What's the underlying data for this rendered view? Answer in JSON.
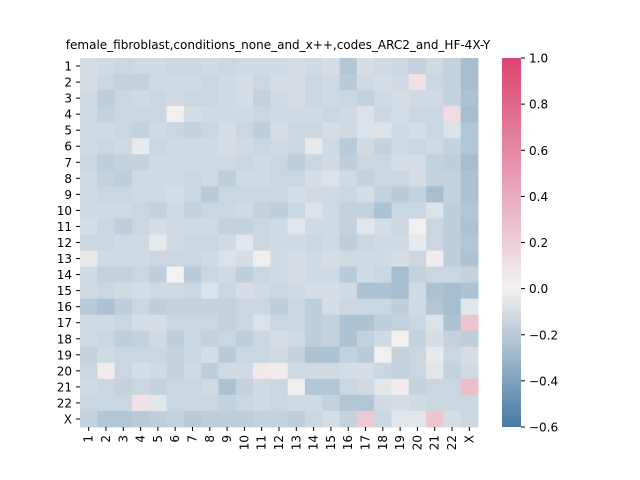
{
  "chart_data": {
    "type": "heatmap",
    "title": "female_fibroblast,conditions_none_and_x++,codes_ARC2_and_HF-4X-Y",
    "xlabel": "",
    "ylabel": "",
    "row_labels": [
      "1",
      "2",
      "3",
      "4",
      "5",
      "6",
      "7",
      "8",
      "9",
      "10",
      "11",
      "12",
      "13",
      "14",
      "15",
      "16",
      "17",
      "18",
      "19",
      "20",
      "21",
      "22",
      "X"
    ],
    "col_labels": [
      "1",
      "2",
      "3",
      "4",
      "5",
      "6",
      "7",
      "8",
      "9",
      "10",
      "11",
      "12",
      "13",
      "14",
      "15",
      "16",
      "17",
      "18",
      "19",
      "20",
      "21",
      "22",
      "X"
    ],
    "vmin": -0.6,
    "vmax": 1.0,
    "colorbar_ticks": [
      "1.0",
      "0.8",
      "0.6",
      "0.4",
      "0.2",
      "0.0",
      "−0.2",
      "−0.4",
      "−0.6"
    ],
    "colorbar_tick_values": [
      1.0,
      0.8,
      0.6,
      0.4,
      0.2,
      0.0,
      -0.2,
      -0.4,
      -0.6
    ],
    "colormap": {
      "low": "#4679a5",
      "mid": "#f2f2f2",
      "high": "#dc4471"
    },
    "values": [
      [
        -0.1,
        -0.12,
        -0.14,
        -0.12,
        -0.12,
        -0.14,
        -0.14,
        -0.12,
        -0.14,
        -0.12,
        -0.12,
        -0.12,
        -0.1,
        -0.12,
        -0.1,
        -0.22,
        -0.1,
        -0.12,
        -0.14,
        -0.16,
        -0.12,
        -0.16,
        -0.26
      ],
      [
        -0.1,
        -0.14,
        -0.16,
        -0.16,
        -0.12,
        -0.12,
        -0.12,
        -0.14,
        -0.12,
        -0.1,
        -0.14,
        -0.1,
        -0.1,
        -0.14,
        -0.12,
        -0.2,
        -0.12,
        -0.1,
        -0.12,
        0.1,
        -0.14,
        -0.16,
        -0.26
      ],
      [
        -0.12,
        -0.18,
        -0.14,
        -0.12,
        -0.14,
        -0.12,
        -0.14,
        -0.14,
        -0.12,
        -0.1,
        -0.16,
        -0.12,
        -0.1,
        -0.14,
        -0.12,
        -0.14,
        -0.16,
        -0.12,
        -0.1,
        -0.12,
        -0.12,
        -0.16,
        -0.24
      ],
      [
        -0.12,
        -0.16,
        -0.14,
        -0.14,
        -0.14,
        0.02,
        -0.1,
        -0.12,
        -0.12,
        -0.12,
        -0.14,
        -0.12,
        -0.12,
        -0.12,
        -0.14,
        -0.12,
        -0.08,
        -0.14,
        -0.1,
        -0.14,
        -0.14,
        0.12,
        -0.26
      ],
      [
        -0.12,
        -0.12,
        -0.14,
        -0.16,
        -0.12,
        -0.14,
        -0.16,
        -0.14,
        -0.1,
        -0.14,
        -0.18,
        -0.1,
        -0.14,
        -0.14,
        -0.1,
        -0.12,
        -0.08,
        -0.08,
        -0.12,
        -0.1,
        -0.14,
        -0.08,
        -0.22
      ],
      [
        -0.12,
        -0.14,
        -0.12,
        -0.04,
        -0.14,
        -0.12,
        -0.12,
        -0.12,
        -0.1,
        -0.12,
        -0.14,
        -0.12,
        -0.14,
        -0.04,
        -0.12,
        -0.2,
        -0.12,
        -0.16,
        -0.12,
        -0.14,
        -0.12,
        -0.16,
        -0.22
      ],
      [
        -0.14,
        -0.18,
        -0.16,
        -0.16,
        -0.12,
        -0.12,
        -0.12,
        -0.12,
        -0.12,
        -0.14,
        -0.12,
        -0.14,
        -0.18,
        -0.14,
        -0.12,
        -0.18,
        -0.14,
        -0.14,
        -0.1,
        -0.1,
        -0.16,
        -0.18,
        -0.26
      ],
      [
        -0.12,
        -0.16,
        -0.18,
        -0.12,
        -0.12,
        -0.12,
        -0.14,
        -0.12,
        -0.18,
        -0.12,
        -0.12,
        -0.14,
        -0.14,
        -0.1,
        -0.08,
        -0.12,
        -0.16,
        -0.14,
        -0.14,
        -0.1,
        -0.16,
        -0.16,
        -0.24
      ],
      [
        -0.12,
        -0.14,
        -0.14,
        -0.12,
        -0.12,
        -0.1,
        -0.14,
        -0.2,
        -0.14,
        -0.14,
        -0.14,
        -0.14,
        -0.1,
        -0.12,
        -0.12,
        -0.14,
        -0.1,
        -0.16,
        -0.2,
        -0.16,
        -0.26,
        -0.16,
        -0.24
      ],
      [
        -0.12,
        -0.12,
        -0.12,
        -0.14,
        -0.16,
        -0.12,
        -0.16,
        -0.14,
        -0.14,
        -0.12,
        -0.16,
        -0.18,
        -0.14,
        -0.08,
        -0.12,
        -0.16,
        -0.16,
        -0.24,
        -0.14,
        -0.14,
        -0.08,
        -0.18,
        -0.22
      ],
      [
        -0.1,
        -0.14,
        -0.18,
        -0.14,
        -0.1,
        -0.12,
        -0.12,
        -0.12,
        -0.16,
        -0.16,
        -0.14,
        -0.12,
        -0.06,
        -0.12,
        -0.12,
        -0.16,
        -0.06,
        -0.1,
        -0.14,
        0.02,
        -0.14,
        -0.18,
        -0.24
      ],
      [
        -0.14,
        -0.14,
        -0.12,
        -0.12,
        -0.04,
        -0.12,
        -0.14,
        -0.14,
        -0.12,
        -0.06,
        -0.14,
        -0.12,
        -0.12,
        -0.14,
        -0.12,
        -0.18,
        -0.14,
        -0.12,
        -0.12,
        -0.04,
        -0.14,
        -0.18,
        -0.22
      ],
      [
        -0.04,
        -0.12,
        -0.12,
        -0.12,
        -0.14,
        -0.14,
        -0.14,
        -0.12,
        -0.08,
        -0.1,
        -0.02,
        -0.12,
        -0.1,
        -0.12,
        -0.1,
        -0.12,
        -0.12,
        -0.12,
        -0.1,
        -0.14,
        0.04,
        -0.18,
        -0.24
      ],
      [
        -0.12,
        -0.16,
        -0.16,
        -0.14,
        -0.18,
        0.0,
        -0.2,
        -0.14,
        -0.12,
        -0.18,
        -0.14,
        -0.12,
        -0.1,
        -0.12,
        -0.12,
        -0.2,
        -0.12,
        -0.14,
        -0.26,
        -0.16,
        -0.14,
        -0.14,
        -0.16
      ],
      [
        -0.12,
        -0.14,
        -0.12,
        -0.1,
        -0.12,
        -0.12,
        -0.14,
        -0.08,
        -0.14,
        -0.1,
        -0.12,
        -0.14,
        -0.12,
        -0.1,
        -0.1,
        -0.12,
        -0.24,
        -0.24,
        -0.26,
        -0.12,
        -0.24,
        -0.26,
        -0.24
      ],
      [
        -0.2,
        -0.24,
        -0.18,
        -0.14,
        -0.18,
        -0.16,
        -0.16,
        -0.16,
        -0.16,
        -0.14,
        -0.14,
        -0.18,
        -0.14,
        -0.18,
        -0.1,
        -0.14,
        -0.14,
        -0.14,
        -0.18,
        -0.12,
        -0.22,
        -0.26,
        -0.06
      ],
      [
        -0.12,
        -0.12,
        -0.14,
        -0.1,
        -0.1,
        -0.14,
        -0.14,
        -0.14,
        -0.16,
        -0.14,
        -0.08,
        -0.14,
        -0.14,
        -0.18,
        -0.16,
        -0.24,
        -0.24,
        -0.18,
        -0.16,
        -0.14,
        -0.08,
        -0.24,
        0.26
      ],
      [
        -0.12,
        -0.14,
        -0.18,
        -0.16,
        -0.12,
        -0.18,
        -0.14,
        -0.16,
        -0.14,
        -0.18,
        -0.14,
        -0.1,
        -0.12,
        -0.18,
        -0.16,
        -0.24,
        -0.16,
        -0.12,
        0.02,
        -0.16,
        -0.1,
        -0.16,
        -0.18
      ],
      [
        -0.16,
        -0.12,
        -0.14,
        -0.14,
        -0.14,
        -0.16,
        -0.14,
        -0.1,
        -0.2,
        -0.14,
        -0.14,
        -0.12,
        -0.16,
        -0.24,
        -0.24,
        -0.16,
        -0.2,
        0.02,
        -0.16,
        -0.14,
        -0.04,
        -0.14,
        -0.1
      ],
      [
        -0.14,
        0.04,
        -0.14,
        -0.1,
        -0.12,
        -0.16,
        -0.12,
        -0.18,
        -0.12,
        -0.12,
        0.06,
        0.04,
        -0.12,
        -0.12,
        -0.12,
        -0.1,
        -0.1,
        -0.14,
        -0.16,
        -0.14,
        -0.06,
        -0.16,
        -0.12
      ],
      [
        -0.12,
        -0.14,
        -0.16,
        -0.14,
        -0.16,
        -0.14,
        -0.14,
        -0.12,
        -0.24,
        -0.16,
        -0.12,
        -0.14,
        -0.02,
        -0.22,
        -0.22,
        -0.14,
        -0.12,
        -0.06,
        0.04,
        -0.16,
        -0.14,
        -0.14,
        0.3
      ],
      [
        -0.14,
        -0.14,
        -0.14,
        0.1,
        -0.06,
        -0.14,
        -0.14,
        -0.14,
        -0.16,
        -0.14,
        -0.12,
        -0.14,
        -0.12,
        -0.12,
        -0.16,
        -0.22,
        -0.22,
        -0.12,
        -0.1,
        -0.12,
        -0.14,
        -0.14,
        -0.14
      ],
      [
        -0.16,
        -0.22,
        -0.22,
        -0.2,
        -0.18,
        -0.16,
        -0.2,
        -0.18,
        -0.18,
        -0.18,
        -0.16,
        -0.16,
        -0.18,
        -0.14,
        -0.1,
        -0.16,
        0.24,
        -0.14,
        -0.06,
        -0.06,
        0.26,
        -0.1,
        -0.14
      ]
    ]
  }
}
